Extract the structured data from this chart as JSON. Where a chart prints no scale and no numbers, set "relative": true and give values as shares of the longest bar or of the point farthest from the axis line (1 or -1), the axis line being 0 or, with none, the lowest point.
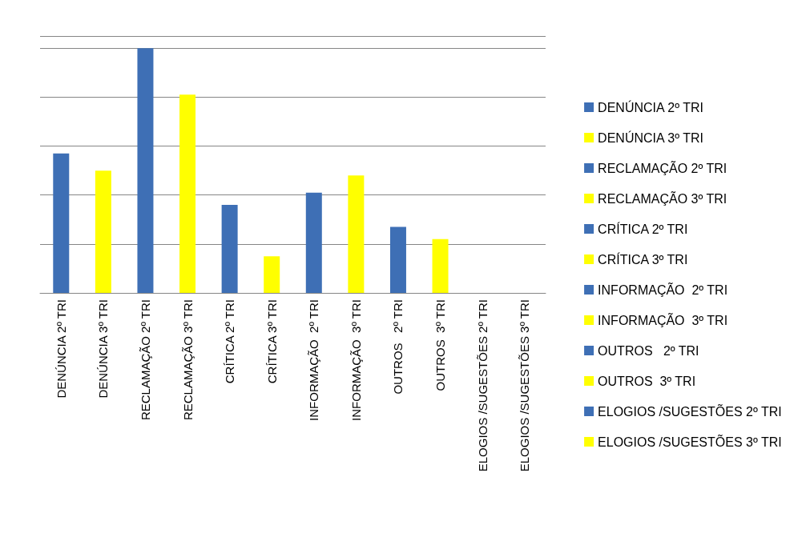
{
  "chart_data": {
    "type": "bar",
    "relative": true,
    "grid": "y",
    "legend": "right",
    "stacked": true,
    "categories": [
      "DENÚNCIA 2º TRI",
      "DENÚNCIA 3º TRI",
      "RECLAMAÇÃO 2º TRI",
      "RECLAMAÇÃO 3º TRI",
      "CRÍTICA 2º TRI",
      "CRÍTICA 3º TRI",
      "INFORMAÇÃO  2º TRI",
      "INFORMAÇÃO  3º TRI",
      "OUTROS   2º TRI",
      "OUTROS  3º TRI",
      "ELOGIOS /SUGESTÕES 2º TRI",
      "ELOGIOS /SUGESTÕES 3º TRI"
    ],
    "series": [
      {
        "name": "DENÚNCIA 2º TRI",
        "color": "#3e6fb5",
        "values": [
          0.57,
          null,
          null,
          null,
          null,
          null,
          null,
          null,
          null,
          null,
          null,
          null
        ]
      },
      {
        "name": "DENÚNCIA 3º TRI",
        "color": "#ffff00",
        "values": [
          null,
          0.5,
          null,
          null,
          null,
          null,
          null,
          null,
          null,
          null,
          null,
          null
        ]
      },
      {
        "name": "RECLAMAÇÃO 2º TRI",
        "color": "#3e6fb5",
        "values": [
          null,
          null,
          1,
          null,
          null,
          null,
          null,
          null,
          null,
          null,
          null,
          null
        ]
      },
      {
        "name": "RECLAMAÇÃO 3º TRI",
        "color": "#ffff00",
        "values": [
          null,
          null,
          null,
          0.81,
          null,
          null,
          null,
          null,
          null,
          null,
          null,
          null
        ]
      },
      {
        "name": "CRÍTICA 2º TRI",
        "color": "#3e6fb5",
        "values": [
          null,
          null,
          null,
          null,
          0.36,
          null,
          null,
          null,
          null,
          null,
          null,
          null
        ]
      },
      {
        "name": "CRÍTICA 3º TRI",
        "color": "#ffff00",
        "values": [
          null,
          null,
          null,
          null,
          null,
          0.15,
          null,
          null,
          null,
          null,
          null,
          null
        ]
      },
      {
        "name": "INFORMAÇÃO  2º TRI",
        "color": "#3e6fb5",
        "values": [
          null,
          null,
          null,
          null,
          null,
          null,
          0.41,
          null,
          null,
          null,
          null,
          null
        ]
      },
      {
        "name": "INFORMAÇÃO  3º TRI",
        "color": "#ffff00",
        "values": [
          null,
          null,
          null,
          null,
          null,
          null,
          null,
          0.48,
          null,
          null,
          null,
          null
        ]
      },
      {
        "name": "OUTROS   2º TRI",
        "color": "#3e6fb5",
        "values": [
          null,
          null,
          null,
          null,
          null,
          null,
          null,
          null,
          0.27,
          null,
          null,
          null
        ]
      },
      {
        "name": "OUTROS  3º TRI",
        "color": "#ffff00",
        "values": [
          null,
          null,
          null,
          null,
          null,
          null,
          null,
          null,
          null,
          0.22,
          null,
          null
        ]
      },
      {
        "name": "ELOGIOS /SUGESTÕES 2º TRI",
        "color": "#3e6fb5",
        "values": [
          null,
          null,
          null,
          null,
          null,
          null,
          null,
          null,
          null,
          null,
          0,
          null
        ]
      },
      {
        "name": "ELOGIOS /SUGESTÕES 3º TRI",
        "color": "#ffff00",
        "values": [
          null,
          null,
          null,
          null,
          null,
          null,
          null,
          null,
          null,
          null,
          null,
          0
        ]
      }
    ]
  }
}
